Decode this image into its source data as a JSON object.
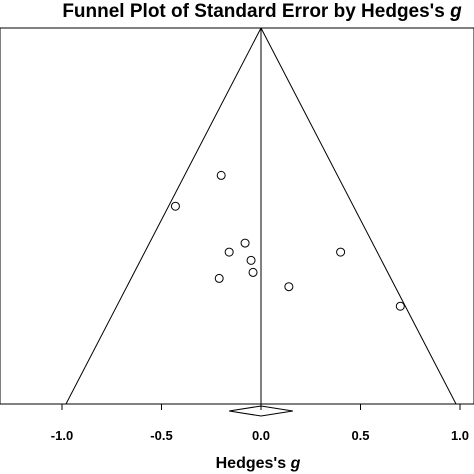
{
  "chart_data": {
    "type": "scatter",
    "title_main": "Funnel Plot of Standard Error by Hedges's ",
    "title_symbol": "g",
    "xlabel_main": "Hedges's ",
    "xlabel_symbol": "g",
    "ylabel": "",
    "xlim": [
      -1.0,
      1.0
    ],
    "ylim_standard_error": [
      0.0,
      0.5
    ],
    "x_tick_values": [
      -1.0,
      -0.5,
      0.0,
      0.5,
      1.0
    ],
    "x_tick_labels": [
      "-1.0",
      "-0.5",
      "0.0",
      "0.5",
      "1.0"
    ],
    "summary_effect": 0.0,
    "summary_ci": [
      -0.16,
      0.16
    ],
    "points": [
      {
        "x": -0.2,
        "y": 0.196
      },
      {
        "x": -0.43,
        "y": 0.237
      },
      {
        "x": -0.08,
        "y": 0.286
      },
      {
        "x": -0.16,
        "y": 0.298
      },
      {
        "x": -0.05,
        "y": 0.309
      },
      {
        "x": -0.04,
        "y": 0.325
      },
      {
        "x": -0.21,
        "y": 0.333
      },
      {
        "x": 0.14,
        "y": 0.344
      },
      {
        "x": 0.4,
        "y": 0.298
      },
      {
        "x": 0.7,
        "y": 0.37
      }
    ],
    "grid": false,
    "legend": "none",
    "colors": {
      "line": "#000000",
      "point_stroke": "#000000",
      "point_fill": "#ffffff",
      "background": "#ffffff"
    }
  }
}
